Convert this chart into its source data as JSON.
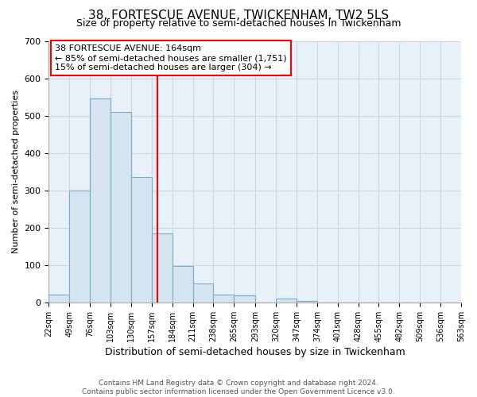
{
  "title": "38, FORTESCUE AVENUE, TWICKENHAM, TW2 5LS",
  "subtitle": "Size of property relative to semi-detached houses in Twickenham",
  "xlabel": "Distribution of semi-detached houses by size in Twickenham",
  "ylabel": "Number of semi-detached properties",
  "bar_color": "#d6e4f0",
  "bar_edge_color": "#7aaaca",
  "vline_color": "red",
  "annotation_text": "38 FORTESCUE AVENUE: 164sqm\n← 85% of semi-detached houses are smaller (1,751)\n15% of semi-detached houses are larger (304) →",
  "footnote": "Contains HM Land Registry data © Crown copyright and database right 2024.\nContains public sector information licensed under the Open Government Licence v3.0.",
  "bin_edges": [
    22,
    49,
    76,
    103,
    130,
    157,
    184,
    211,
    238,
    265,
    293,
    320,
    347,
    374,
    401,
    428,
    455,
    482,
    509,
    536,
    563
  ],
  "bin_labels": [
    "22sqm",
    "49sqm",
    "76sqm",
    "103sqm",
    "130sqm",
    "157sqm",
    "184sqm",
    "211sqm",
    "238sqm",
    "265sqm",
    "293sqm",
    "320sqm",
    "347sqm",
    "374sqm",
    "401sqm",
    "428sqm",
    "455sqm",
    "482sqm",
    "509sqm",
    "536sqm",
    "563sqm"
  ],
  "counts": [
    22,
    300,
    547,
    510,
    335,
    185,
    98,
    50,
    22,
    18,
    0,
    10,
    5,
    0,
    0,
    0,
    0,
    0,
    0,
    0
  ],
  "ylim": [
    0,
    700
  ],
  "yticks": [
    0,
    100,
    200,
    300,
    400,
    500,
    600,
    700
  ],
  "property_size": 164,
  "plot_bg_color": "#e8f0f8",
  "grid_color": "#c8d8e8",
  "title_fontsize": 11,
  "subtitle_fontsize": 9,
  "highlight_bin_index": 5
}
